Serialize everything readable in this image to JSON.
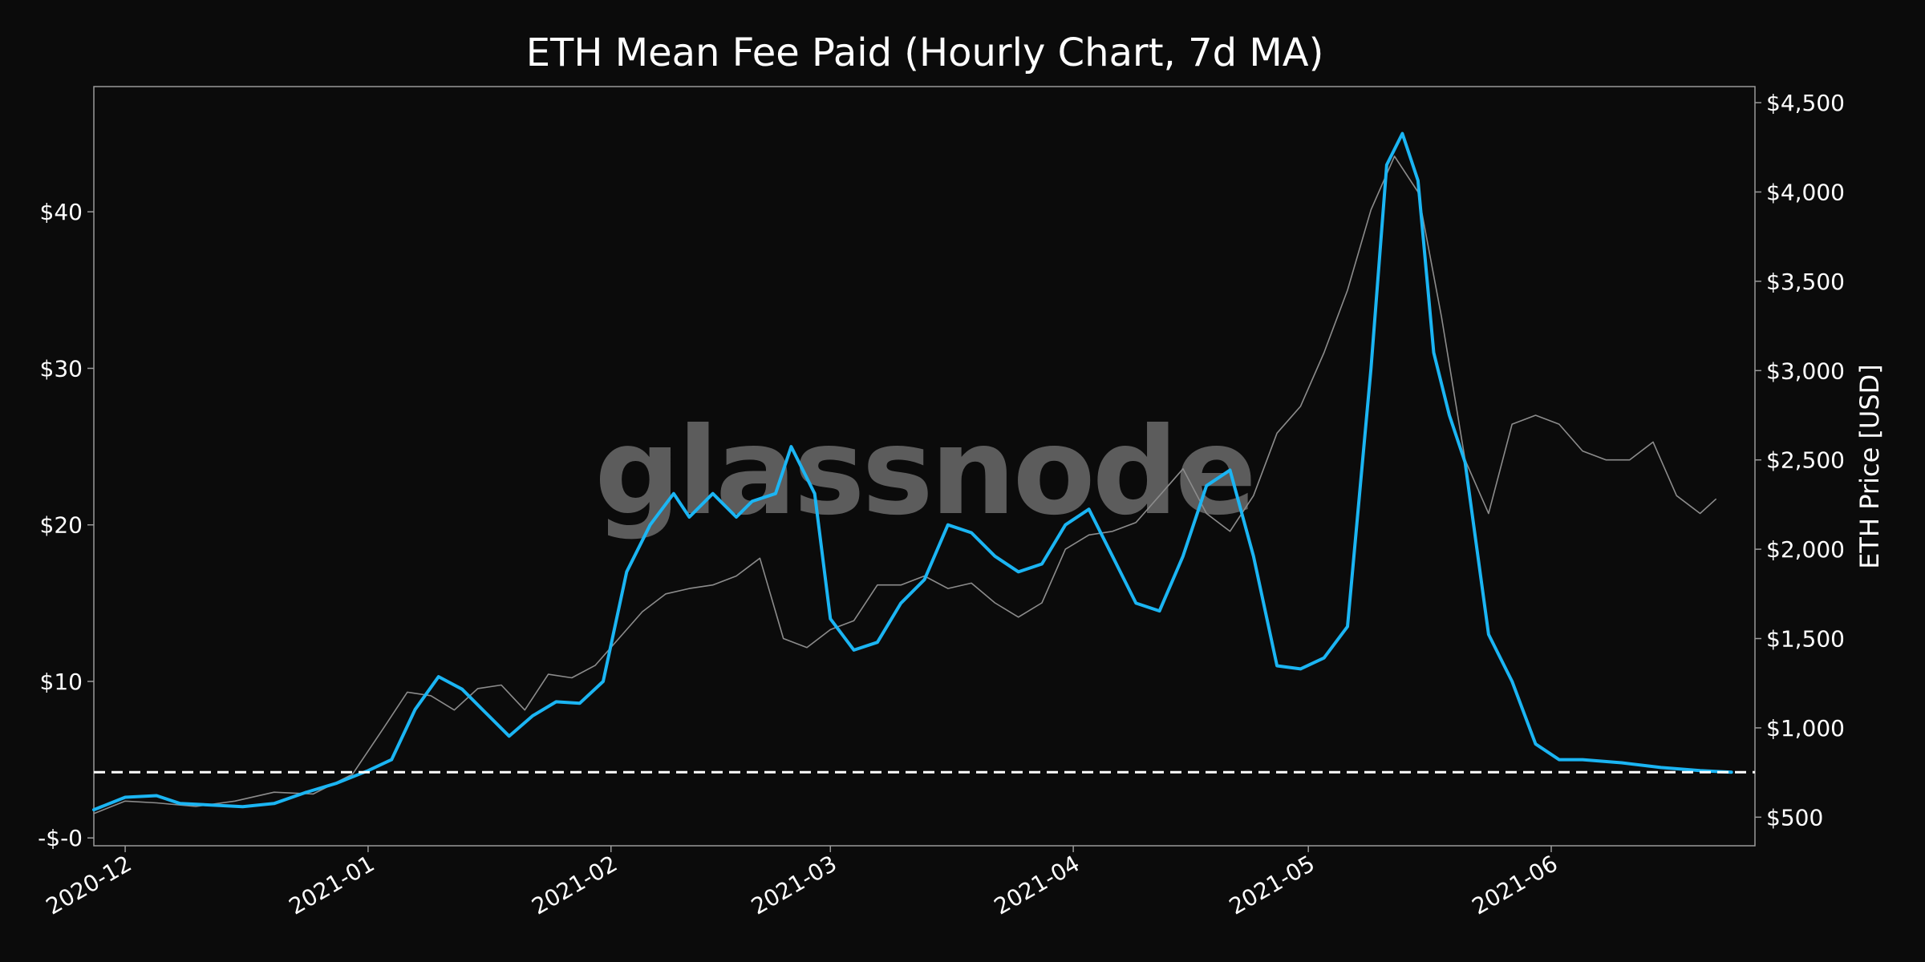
{
  "watermark": "glassnode",
  "colors": {
    "background": "#0b0b0b",
    "fee_line": "#1bb5f3",
    "price_line": "#8c8c8c",
    "threshold": "#ffffff",
    "axes": "#9a9a9a",
    "text": "#ffffff"
  },
  "chart_data": {
    "type": "line",
    "title": "ETH Mean Fee Paid (Hourly Chart, 7d MA)",
    "xlabel": "",
    "ylabel_left": "",
    "ylabel_right": "ETH Price [USD]",
    "x_range": [
      "2020-11-27",
      "2021-06-27"
    ],
    "x_ticks": [
      "2020-12",
      "2021-01",
      "2021-02",
      "2021-03",
      "2021-04",
      "2021-05",
      "2021-06"
    ],
    "left_axis": {
      "ylim": [
        -0.5,
        48
      ],
      "ticks": [
        0,
        10,
        20,
        30,
        40
      ],
      "tick_labels": [
        "-$-0",
        "$10",
        "$20",
        "$30",
        "$40"
      ]
    },
    "right_axis": {
      "ylim": [
        340,
        4590
      ],
      "ticks": [
        500,
        1000,
        1500,
        2000,
        2500,
        3000,
        3500,
        4000,
        4500
      ],
      "tick_labels": [
        "$500",
        "$1,000",
        "$1,500",
        "$2,000",
        "$2,500",
        "$3,000",
        "$3,500",
        "$4,000",
        "$4,500"
      ]
    },
    "threshold": {
      "axis": "left",
      "value": 4.2,
      "style": "dashed"
    },
    "grid": false,
    "legend": "none",
    "series": [
      {
        "axis": "left",
        "color": "#1bb5f3",
        "x": [
          "2020-11-27",
          "2020-12-01",
          "2020-12-05",
          "2020-12-08",
          "2020-12-12",
          "2020-12-16",
          "2020-12-20",
          "2020-12-24",
          "2020-12-28",
          "2021-01-01",
          "2021-01-04",
          "2021-01-07",
          "2021-01-10",
          "2021-01-13",
          "2021-01-16",
          "2021-01-19",
          "2021-01-22",
          "2021-01-25",
          "2021-01-28",
          "2021-01-31",
          "2021-02-03",
          "2021-02-06",
          "2021-02-09",
          "2021-02-11",
          "2021-02-14",
          "2021-02-17",
          "2021-02-19",
          "2021-02-22",
          "2021-02-24",
          "2021-02-27",
          "2021-03-01",
          "2021-03-04",
          "2021-03-07",
          "2021-03-10",
          "2021-03-13",
          "2021-03-16",
          "2021-03-19",
          "2021-03-22",
          "2021-03-25",
          "2021-03-28",
          "2021-03-31",
          "2021-04-03",
          "2021-04-06",
          "2021-04-09",
          "2021-04-12",
          "2021-04-15",
          "2021-04-18",
          "2021-04-21",
          "2021-04-24",
          "2021-04-27",
          "2021-04-30",
          "2021-05-03",
          "2021-05-06",
          "2021-05-09",
          "2021-05-11",
          "2021-05-13",
          "2021-05-15",
          "2021-05-17",
          "2021-05-19",
          "2021-05-21",
          "2021-05-24",
          "2021-05-27",
          "2021-05-30",
          "2021-06-02",
          "2021-06-05",
          "2021-06-10",
          "2021-06-15",
          "2021-06-20",
          "2021-06-24"
        ],
        "values": [
          1.8,
          2.6,
          2.7,
          2.2,
          2.1,
          2.0,
          2.2,
          2.9,
          3.5,
          4.3,
          5.0,
          8.2,
          10.3,
          9.5,
          8.0,
          6.5,
          7.8,
          8.7,
          8.6,
          10.0,
          17.0,
          20.0,
          22.0,
          20.5,
          22.0,
          20.5,
          21.5,
          22.0,
          25.0,
          22.0,
          14.0,
          12.0,
          12.5,
          15.0,
          16.5,
          20.0,
          19.5,
          18.0,
          17.0,
          17.5,
          20.0,
          21.0,
          18.0,
          15.0,
          14.5,
          18.0,
          22.5,
          23.5,
          18.0,
          11.0,
          10.8,
          11.5,
          13.5,
          30.0,
          43.0,
          45.0,
          42.0,
          31.0,
          27.0,
          24.0,
          13.0,
          10.0,
          6.0,
          5.0,
          5.0,
          4.8,
          4.5,
          4.3,
          4.2
        ]
      },
      {
        "axis": "right",
        "color": "#8c8c8c",
        "x": [
          "2020-11-27",
          "2020-12-01",
          "2020-12-05",
          "2020-12-10",
          "2020-12-15",
          "2020-12-20",
          "2020-12-25",
          "2020-12-30",
          "2021-01-03",
          "2021-01-06",
          "2021-01-09",
          "2021-01-12",
          "2021-01-15",
          "2021-01-18",
          "2021-01-21",
          "2021-01-24",
          "2021-01-27",
          "2021-01-30",
          "2021-02-02",
          "2021-02-05",
          "2021-02-08",
          "2021-02-11",
          "2021-02-14",
          "2021-02-17",
          "2021-02-20",
          "2021-02-23",
          "2021-02-26",
          "2021-03-01",
          "2021-03-04",
          "2021-03-07",
          "2021-03-10",
          "2021-03-13",
          "2021-03-16",
          "2021-03-19",
          "2021-03-22",
          "2021-03-25",
          "2021-03-28",
          "2021-03-31",
          "2021-04-03",
          "2021-04-06",
          "2021-04-09",
          "2021-04-12",
          "2021-04-15",
          "2021-04-18",
          "2021-04-21",
          "2021-04-24",
          "2021-04-27",
          "2021-04-30",
          "2021-05-03",
          "2021-05-06",
          "2021-05-09",
          "2021-05-12",
          "2021-05-15",
          "2021-05-18",
          "2021-05-21",
          "2021-05-24",
          "2021-05-27",
          "2021-05-30",
          "2021-06-02",
          "2021-06-05",
          "2021-06-08",
          "2021-06-11",
          "2021-06-14",
          "2021-06-17",
          "2021-06-20",
          "2021-06-22"
        ],
        "values": [
          520,
          590,
          580,
          560,
          590,
          640,
          630,
          740,
          1000,
          1200,
          1180,
          1100,
          1220,
          1240,
          1100,
          1300,
          1280,
          1350,
          1500,
          1650,
          1750,
          1780,
          1800,
          1850,
          1950,
          1500,
          1450,
          1550,
          1600,
          1800,
          1800,
          1850,
          1780,
          1810,
          1700,
          1620,
          1700,
          2000,
          2080,
          2100,
          2150,
          2300,
          2450,
          2200,
          2100,
          2300,
          2650,
          2800,
          3100,
          3450,
          3900,
          4200,
          4000,
          3300,
          2500,
          2200,
          2700,
          2750,
          2700,
          2550,
          2500,
          2500,
          2600,
          2300,
          2200,
          2280
        ]
      }
    ]
  }
}
